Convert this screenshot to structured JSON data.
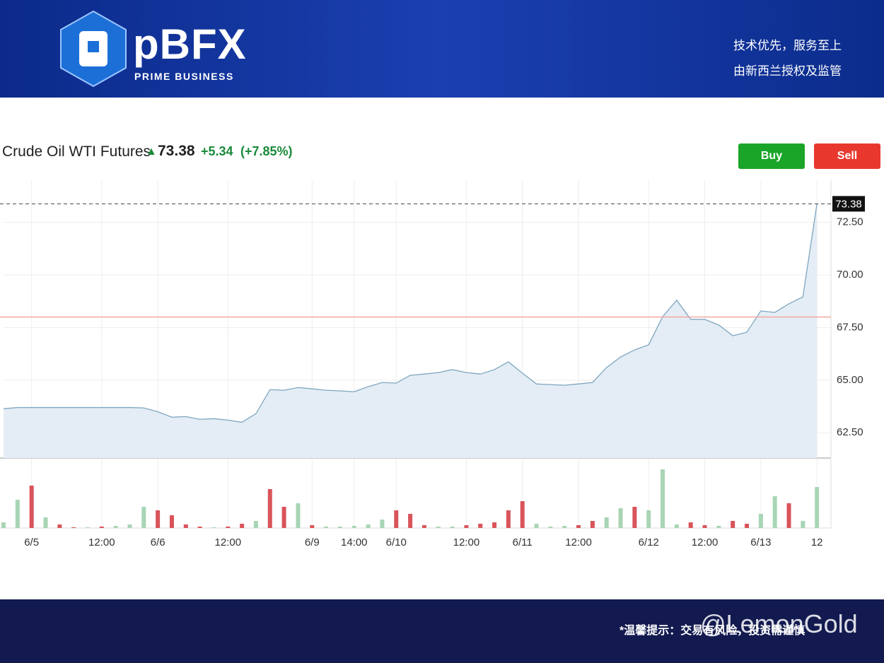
{
  "header": {
    "logo": "pBFX",
    "logo_sub": "PRIME BUSINESS",
    "slogan": "技术优先，服务至上",
    "license": "由新西兰授权及监管"
  },
  "quote": {
    "name": "Crude Oil WTI Futures",
    "price": 73.38,
    "change": "+5.34",
    "change_pct": "(+7.85%)"
  },
  "buttons": {
    "buy": "Buy",
    "sell": "Sell"
  },
  "chart_data": {
    "type": "line",
    "categories": [
      null,
      null,
      "6/5",
      null,
      null,
      null,
      null,
      "12:00",
      null,
      null,
      null,
      "6/6",
      null,
      null,
      null,
      null,
      "12:00",
      null,
      null,
      null,
      null,
      null,
      "6/9",
      null,
      null,
      "14:00",
      null,
      null,
      "6/10",
      null,
      null,
      null,
      null,
      "12:00",
      null,
      null,
      null,
      "6/11",
      null,
      null,
      null,
      "12:00",
      null,
      null,
      null,
      null,
      "6/12",
      null,
      null,
      null,
      "12:00",
      null,
      null,
      null,
      "6/13",
      null,
      null,
      null,
      "12",
      null
    ],
    "series": [
      {
        "color": "#7fa6c0",
        "values": [
          63.64,
          63.7,
          63.7,
          63.7,
          63.7,
          63.7,
          63.7,
          63.7,
          63.7,
          63.7,
          63.68,
          63.5,
          63.24,
          63.27,
          63.14,
          63.17,
          63.1,
          63.0,
          63.41,
          64.55,
          64.52,
          64.65,
          64.59,
          64.52,
          64.49,
          64.45,
          64.69,
          64.89,
          64.86,
          65.23,
          65.29,
          65.36,
          65.5,
          65.36,
          65.29,
          65.5,
          65.87,
          65.33,
          64.82,
          64.79,
          64.76,
          64.82,
          64.89,
          65.6,
          66.1,
          66.44,
          66.68,
          68.02,
          68.8,
          67.89,
          67.89,
          67.62,
          67.11,
          67.28,
          68.29,
          68.22,
          68.63,
          68.96,
          73.38,
          null
        ]
      }
    ],
    "ylim": [
      61.3,
      74.5
    ],
    "yticks": [
      {
        "value": 62.5,
        "label": "62.50"
      },
      {
        "value": 65,
        "label": "65.00"
      },
      {
        "value": 67.5,
        "label": "67.50"
      },
      {
        "value": 70,
        "label": "70.00"
      },
      {
        "value": 72.5,
        "label": "72.50"
      }
    ],
    "hline": {
      "value": 68,
      "color": "#f2a9a0"
    },
    "grid": true,
    "volume": {
      "values": [
        8,
        40,
        60,
        15,
        5,
        1,
        1,
        2,
        3,
        5,
        30,
        25,
        18,
        5,
        2,
        1,
        2,
        6,
        10,
        55,
        30,
        35,
        4,
        2,
        2,
        3,
        5,
        12,
        25,
        20,
        4,
        2,
        2,
        4,
        6,
        8,
        25,
        38,
        6,
        2,
        3,
        4,
        10,
        15,
        28,
        30,
        25,
        83,
        5,
        8,
        4,
        3,
        10,
        6,
        20,
        45,
        35,
        10,
        58,
        null
      ],
      "colors": [
        "#a8d5b5",
        "#a8d5b5",
        "#d9545a",
        "#a8d5b5",
        "#d9545a",
        "#d9545a",
        "#a8d5b5",
        "#d9545a",
        "#a8d5b5",
        "#a8d5b5",
        "#a8d5b5",
        "#d9545a",
        "#d9545a",
        "#d9545a",
        "#d9545a",
        "#a8d5b5",
        "#d9545a",
        "#d9545a",
        "#a8d5b5",
        "#d9545a",
        "#d9545a",
        "#a8d5b5",
        "#d9545a",
        "#a8d5b5",
        "#a8d5b5",
        "#a8d5b5",
        "#a8d5b5",
        "#a8d5b5",
        "#d9545a",
        "#d9545a",
        "#d9545a",
        "#a8d5b5",
        "#a8d5b5",
        "#d9545a",
        "#d9545a",
        "#d9545a",
        "#d9545a",
        "#d9545a",
        "#a8d5b5",
        "#a8d5b5",
        "#a8d5b5",
        "#d9545a",
        "#d9545a",
        "#a8d5b5",
        "#a8d5b5",
        "#d9545a",
        "#a8d5b5",
        "#a8d5b5",
        "#a8d5b5",
        "#d9545a",
        "#d9545a",
        "#a8d5b5",
        "#d9545a",
        "#d9545a",
        "#a8d5b5",
        "#a8d5b5",
        "#d9545a",
        "#a8d5b5",
        "#a8d5b5",
        "#a8d5b5"
      ]
    }
  },
  "footer": {
    "notice": "*温馨提示：交易有风险，投资需谨慎",
    "watermark": "@LemonGold"
  }
}
